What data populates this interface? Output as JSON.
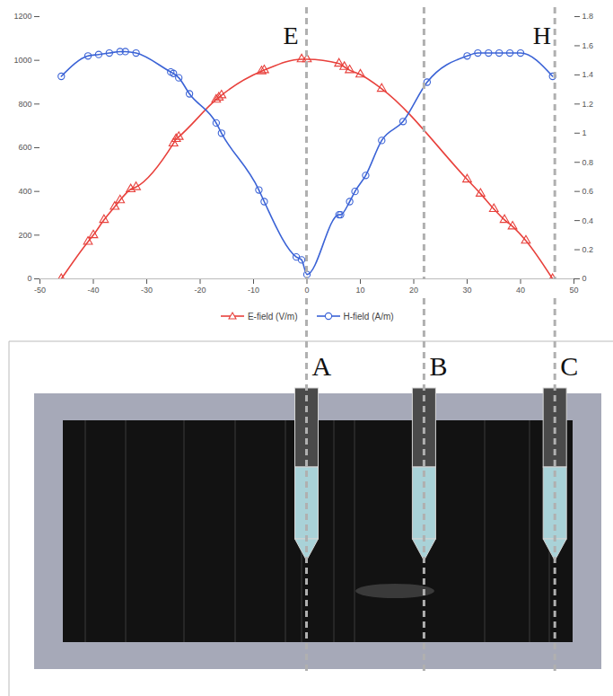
{
  "chart_data": {
    "type": "line",
    "xlim": [
      -50,
      50
    ],
    "xticks": [
      -50,
      -40,
      -30,
      -20,
      -10,
      0,
      10,
      20,
      30,
      40,
      50
    ],
    "ylim": [
      0,
      1200
    ],
    "yticks": [
      0,
      200,
      400,
      600,
      800,
      1000,
      1200
    ],
    "y2lim": [
      0,
      1.8
    ],
    "y2ticks": [
      0,
      0.2,
      0.4,
      0.6,
      0.8,
      1,
      1.2,
      1.4,
      1.6,
      1.8
    ],
    "grid": false,
    "legend": "bottom",
    "series": [
      {
        "name": "E-field (V/m)",
        "color": "#e8413c",
        "marker": "triangle",
        "line_style": "solid",
        "x": [
          -46,
          -41,
          -40,
          -38,
          -36,
          -35,
          -33,
          -32,
          -25,
          -24.5,
          -24,
          -17,
          -16.5,
          -16,
          -8.5,
          -8,
          -1,
          0,
          6,
          7,
          8,
          10,
          14,
          30,
          32.5,
          35,
          37,
          38.5,
          41,
          46
        ],
        "values": [
          0,
          170,
          200,
          270,
          330,
          360,
          410,
          420,
          620,
          640,
          650,
          820,
          830,
          840,
          950,
          955,
          1005,
          1005,
          985,
          970,
          955,
          935,
          870,
          455,
          390,
          320,
          270,
          240,
          175,
          0
        ]
      },
      {
        "name": "H-field (A/m)",
        "color": "#3b63d6",
        "marker": "circle",
        "line_style": "solid",
        "axis": "y2",
        "x": [
          -46,
          -41,
          -39,
          -37,
          -35,
          -34,
          -32,
          -25.5,
          -25,
          -24,
          -22,
          -17,
          -16,
          -9,
          -8,
          -2,
          -1,
          0,
          6,
          6.3,
          8,
          9,
          11,
          14,
          18,
          22.5,
          30,
          32,
          34,
          36,
          38,
          40,
          46
        ],
        "values": [
          1.39,
          1.53,
          1.54,
          1.55,
          1.56,
          1.56,
          1.55,
          1.42,
          1.41,
          1.38,
          1.27,
          1.07,
          1.0,
          0.61,
          0.53,
          0.15,
          0.13,
          0.03,
          0.44,
          0.44,
          0.53,
          0.6,
          0.71,
          0.95,
          1.08,
          1.35,
          1.53,
          1.55,
          1.55,
          1.55,
          1.55,
          1.55,
          1.39
        ]
      }
    ],
    "annotations": [
      {
        "text": "E",
        "x": -3,
        "y": 1110
      },
      {
        "text": "H",
        "x": 44,
        "y": 1110
      }
    ],
    "reference_lines": {
      "line_style": "dashed",
      "lines": [
        {
          "label": "A",
          "x": 0
        },
        {
          "label": "B",
          "x": 22
        },
        {
          "label": "C",
          "x": 46.5
        }
      ]
    }
  }
}
